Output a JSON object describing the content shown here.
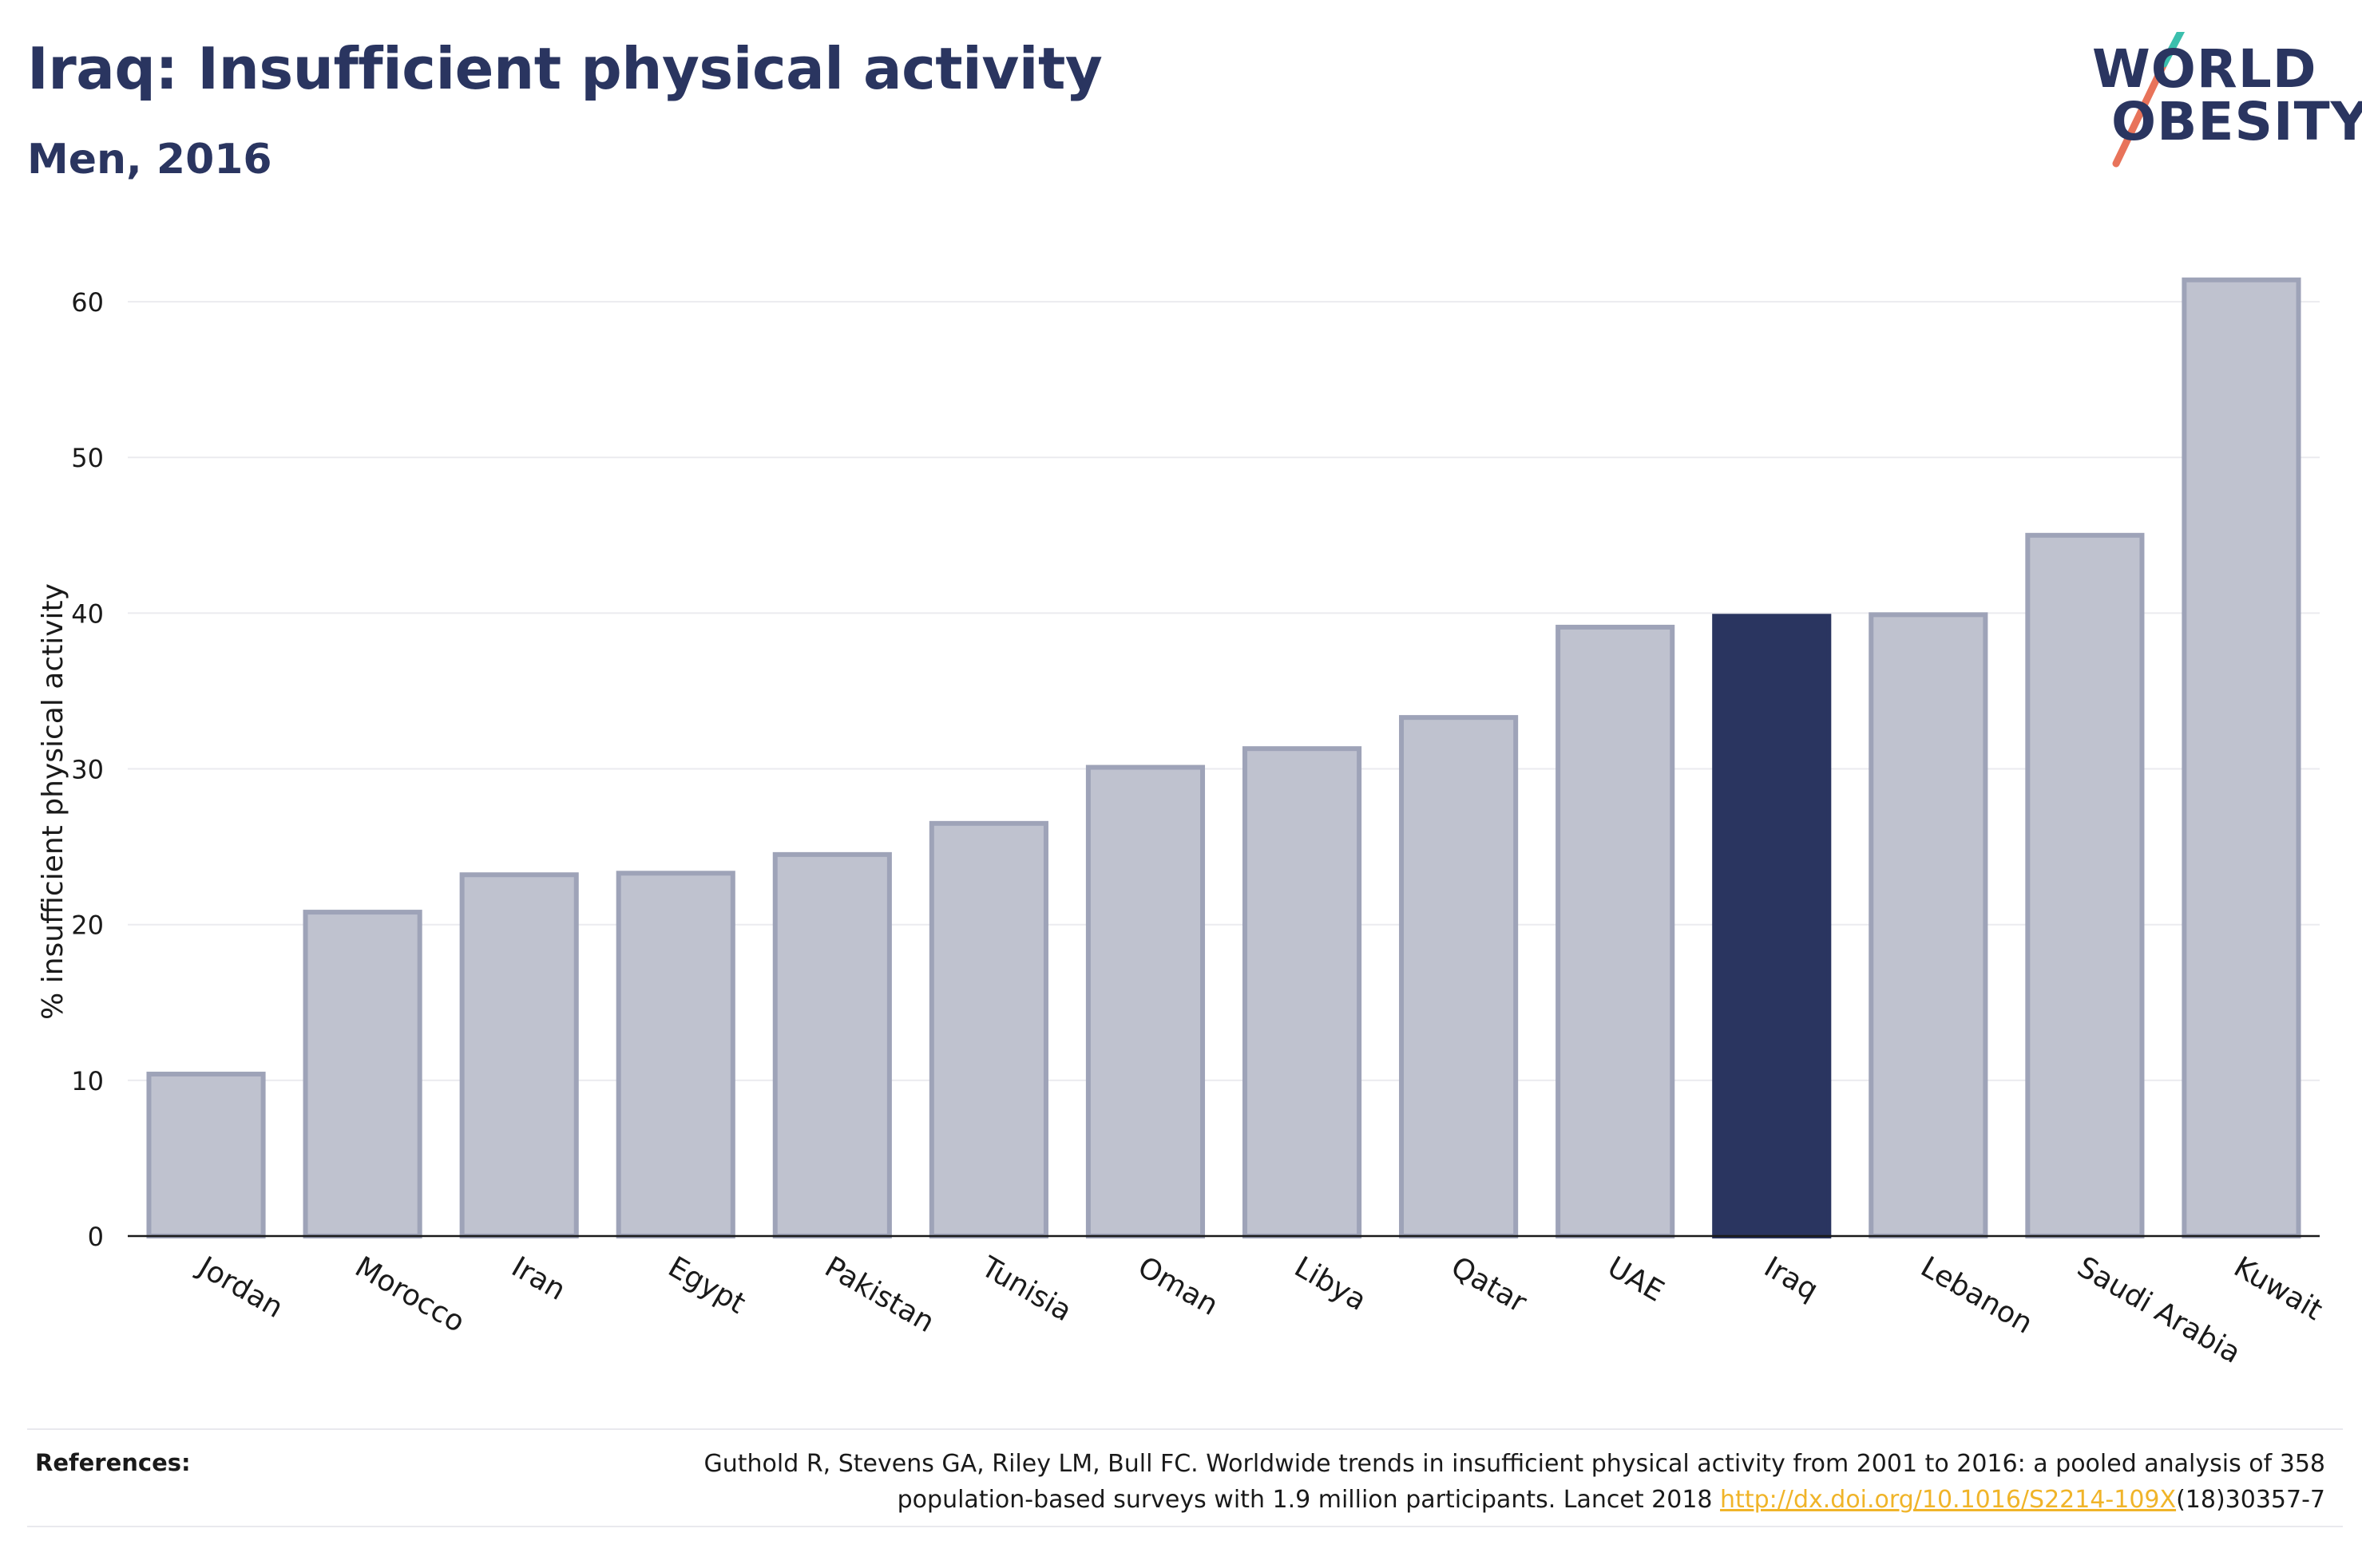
{
  "header": {
    "title": "Iraq: Insufficient physical activity",
    "subtitle": "Men, 2016"
  },
  "logo": {
    "line1": "WORLD",
    "line2": "OBESITY",
    "accent_colors": [
      "#3bbfad",
      "#e8735a"
    ]
  },
  "chart_data": {
    "type": "bar",
    "ylabel": "% insufficient physical activity",
    "xlabel": "",
    "ylim": [
      0,
      64
    ],
    "yticks": [
      0,
      10,
      20,
      30,
      40,
      50,
      60
    ],
    "grid": true,
    "highlight": "Iraq",
    "colors": {
      "bar": "#bfc2cf",
      "bar_edge": "#9ea3b8",
      "highlight": "#2a3560"
    },
    "categories": [
      "Jordan",
      "Morocco",
      "Iran",
      "Egypt",
      "Pakistan",
      "Tunisia",
      "Oman",
      "Libya",
      "Qatar",
      "UAE",
      "Iraq",
      "Lebanon",
      "Saudi Arabia",
      "Kuwait"
    ],
    "values": [
      10.4,
      20.8,
      23.2,
      23.3,
      24.5,
      26.5,
      30.1,
      31.3,
      33.3,
      39.1,
      39.8,
      39.9,
      45.0,
      61.4
    ]
  },
  "references": {
    "label": "References:",
    "line1": "Guthold R, Stevens GA, Riley LM, Bull FC. Worldwide trends in insufficient physical activity from 2001 to 2016: a pooled analysis of 358",
    "line2_prefix": "population-based surveys with 1.9 million participants. Lancet 2018 ",
    "link": "http://dx.doi.org/10.1016/S2214-109X",
    "line2_suffix": "(18)30357-7"
  }
}
